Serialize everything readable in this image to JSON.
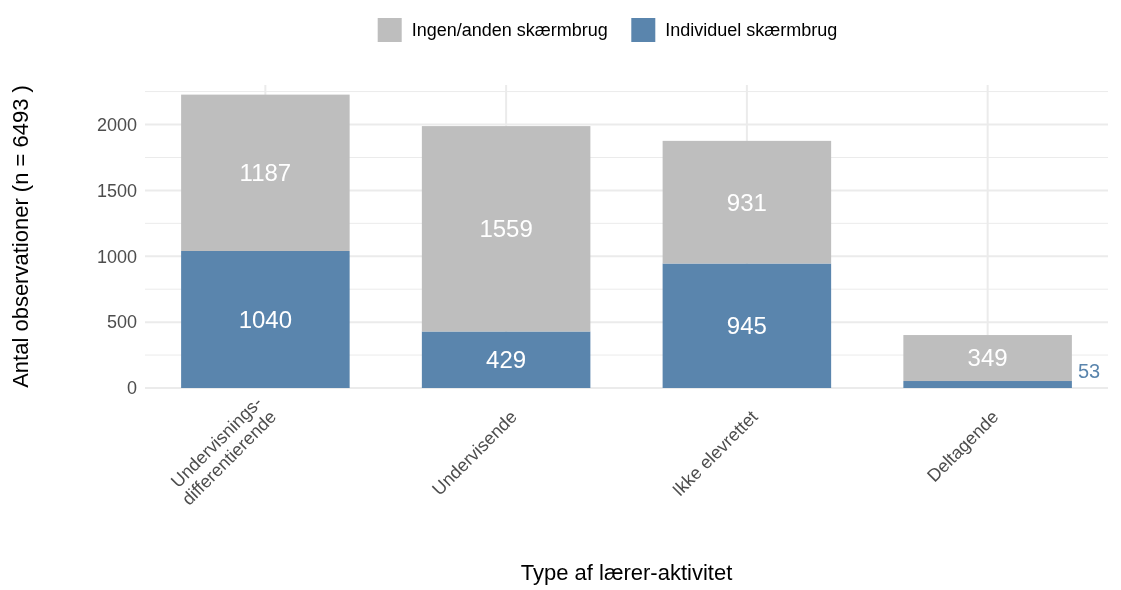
{
  "chart_data": {
    "type": "bar",
    "stacked": true,
    "xlabel": "Type af lærer-aktivitet",
    "ylabel": "Antal observationer (n = 6493 )",
    "categories": [
      "Undervisnings-\ndifferentierende",
      "Undervisende",
      "Ikke elevrettet",
      "Deltagende"
    ],
    "series": [
      {
        "name": "Individuel skærmbrug",
        "color": "#5a85ad",
        "values": [
          1040,
          429,
          945,
          53
        ]
      },
      {
        "name": "Ingen/anden skærmbrug",
        "color": "#bebebe",
        "values": [
          1187,
          1559,
          931,
          349
        ]
      }
    ],
    "ylim": [
      0,
      2300
    ],
    "yticks": [
      0,
      {
        "value": 250,
        "label": null
      },
      500,
      {
        "value": 750,
        "label": null
      },
      1000,
      {
        "value": 1250,
        "label": null
      },
      1500,
      {
        "value": 1750,
        "label": null
      },
      2000,
      {
        "value": 2250,
        "label": null
      }
    ],
    "grid": true,
    "legend": "top",
    "data_labels": true
  }
}
